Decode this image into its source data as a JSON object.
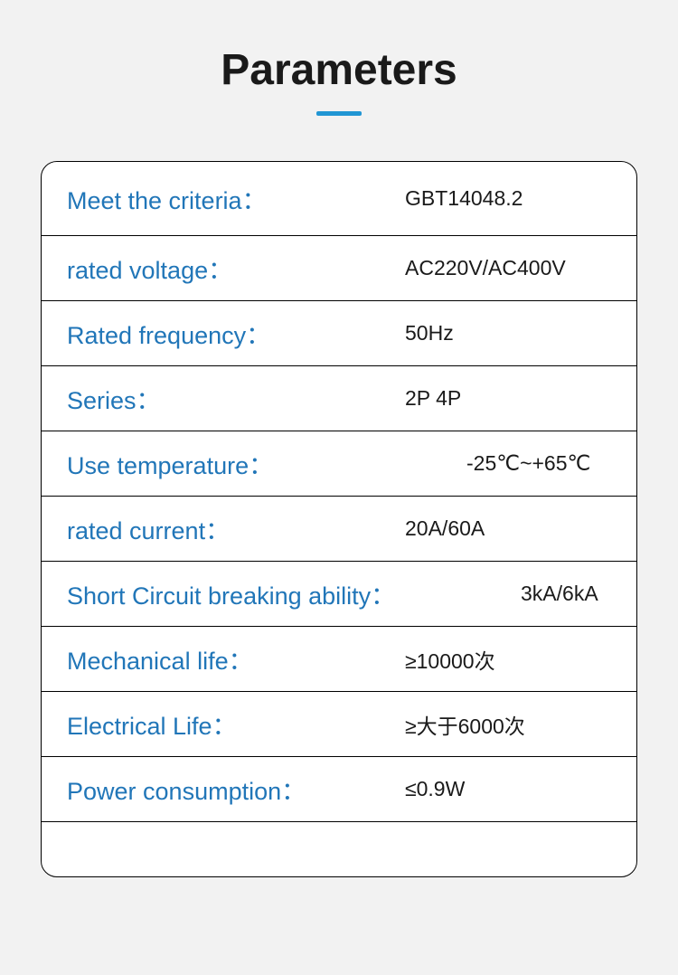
{
  "title": "Parameters",
  "accent_color": "#2196d4",
  "label_color": "#2176b8",
  "value_color": "#1a1a1a",
  "background_color": "#f2f2f2",
  "table_background": "#ffffff",
  "border_color": "#000000",
  "title_fontsize": 48,
  "label_fontsize": 27,
  "value_fontsize": 23,
  "rows": [
    {
      "label": "Meet the criteria：",
      "value": "GBT14048.2"
    },
    {
      "label": "rated voltage：",
      "value": "AC220V/AC400V"
    },
    {
      "label": "Rated frequency：",
      "value": "50Hz"
    },
    {
      "label": "Series：",
      "value": "2P 4P"
    },
    {
      "label": "Use temperature：",
      "value": "-25℃~+65℃"
    },
    {
      "label": "rated current：",
      "value": "20A/60A"
    },
    {
      "label": "Short Circuit breaking ability：",
      "value": "3kA/6kA"
    },
    {
      "label": "Mechanical life：",
      "value": "≥10000次"
    },
    {
      "label": "Electrical Life：",
      "value": "≥大于6000次"
    },
    {
      "label": "Power consumption：",
      "value": "≤0.9W"
    }
  ]
}
